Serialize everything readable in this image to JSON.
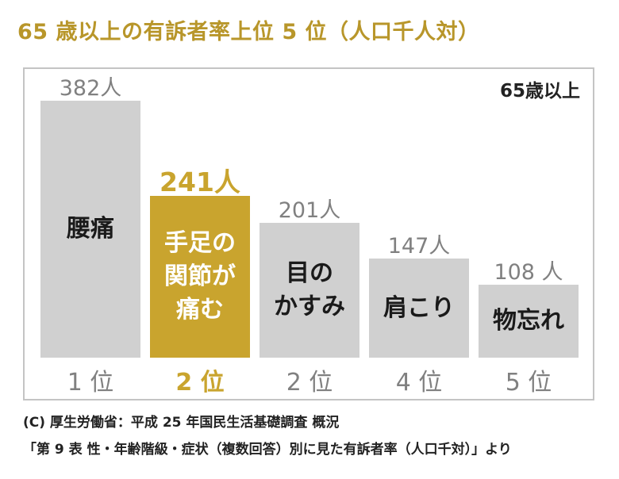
{
  "title": "65 歳以上の有訴者率上位 5 位（人口千人対）",
  "badge": "65歳以上",
  "chart_data": {
    "type": "bar",
    "title": "65 歳以上の有訴者率上位 5 位（人口千人対）",
    "categories": [
      "腰痛",
      "手足の\n関節が\n痛む",
      "目の\nかすみ",
      "肩こり",
      "物忘れ"
    ],
    "values": [
      382,
      241,
      201,
      147,
      108
    ],
    "value_labels": [
      "382人",
      "241人",
      "201人",
      "147人",
      "108 人"
    ],
    "ranks": [
      "1 位",
      "2 位",
      "2 位",
      "4 位",
      "5 位"
    ],
    "highlight_index": 1,
    "ylim": [
      0,
      382
    ],
    "colors": {
      "default": "#d0d0d0",
      "highlight": "#c9a42e"
    }
  },
  "source": {
    "line1": "(C) 厚生労働省：平成 25 年国民生活基礎調査 概況",
    "line2": "「第 9 表 性・年齢階級・症状（複数回答）別に見た有訴者率（人口千対）」より"
  }
}
